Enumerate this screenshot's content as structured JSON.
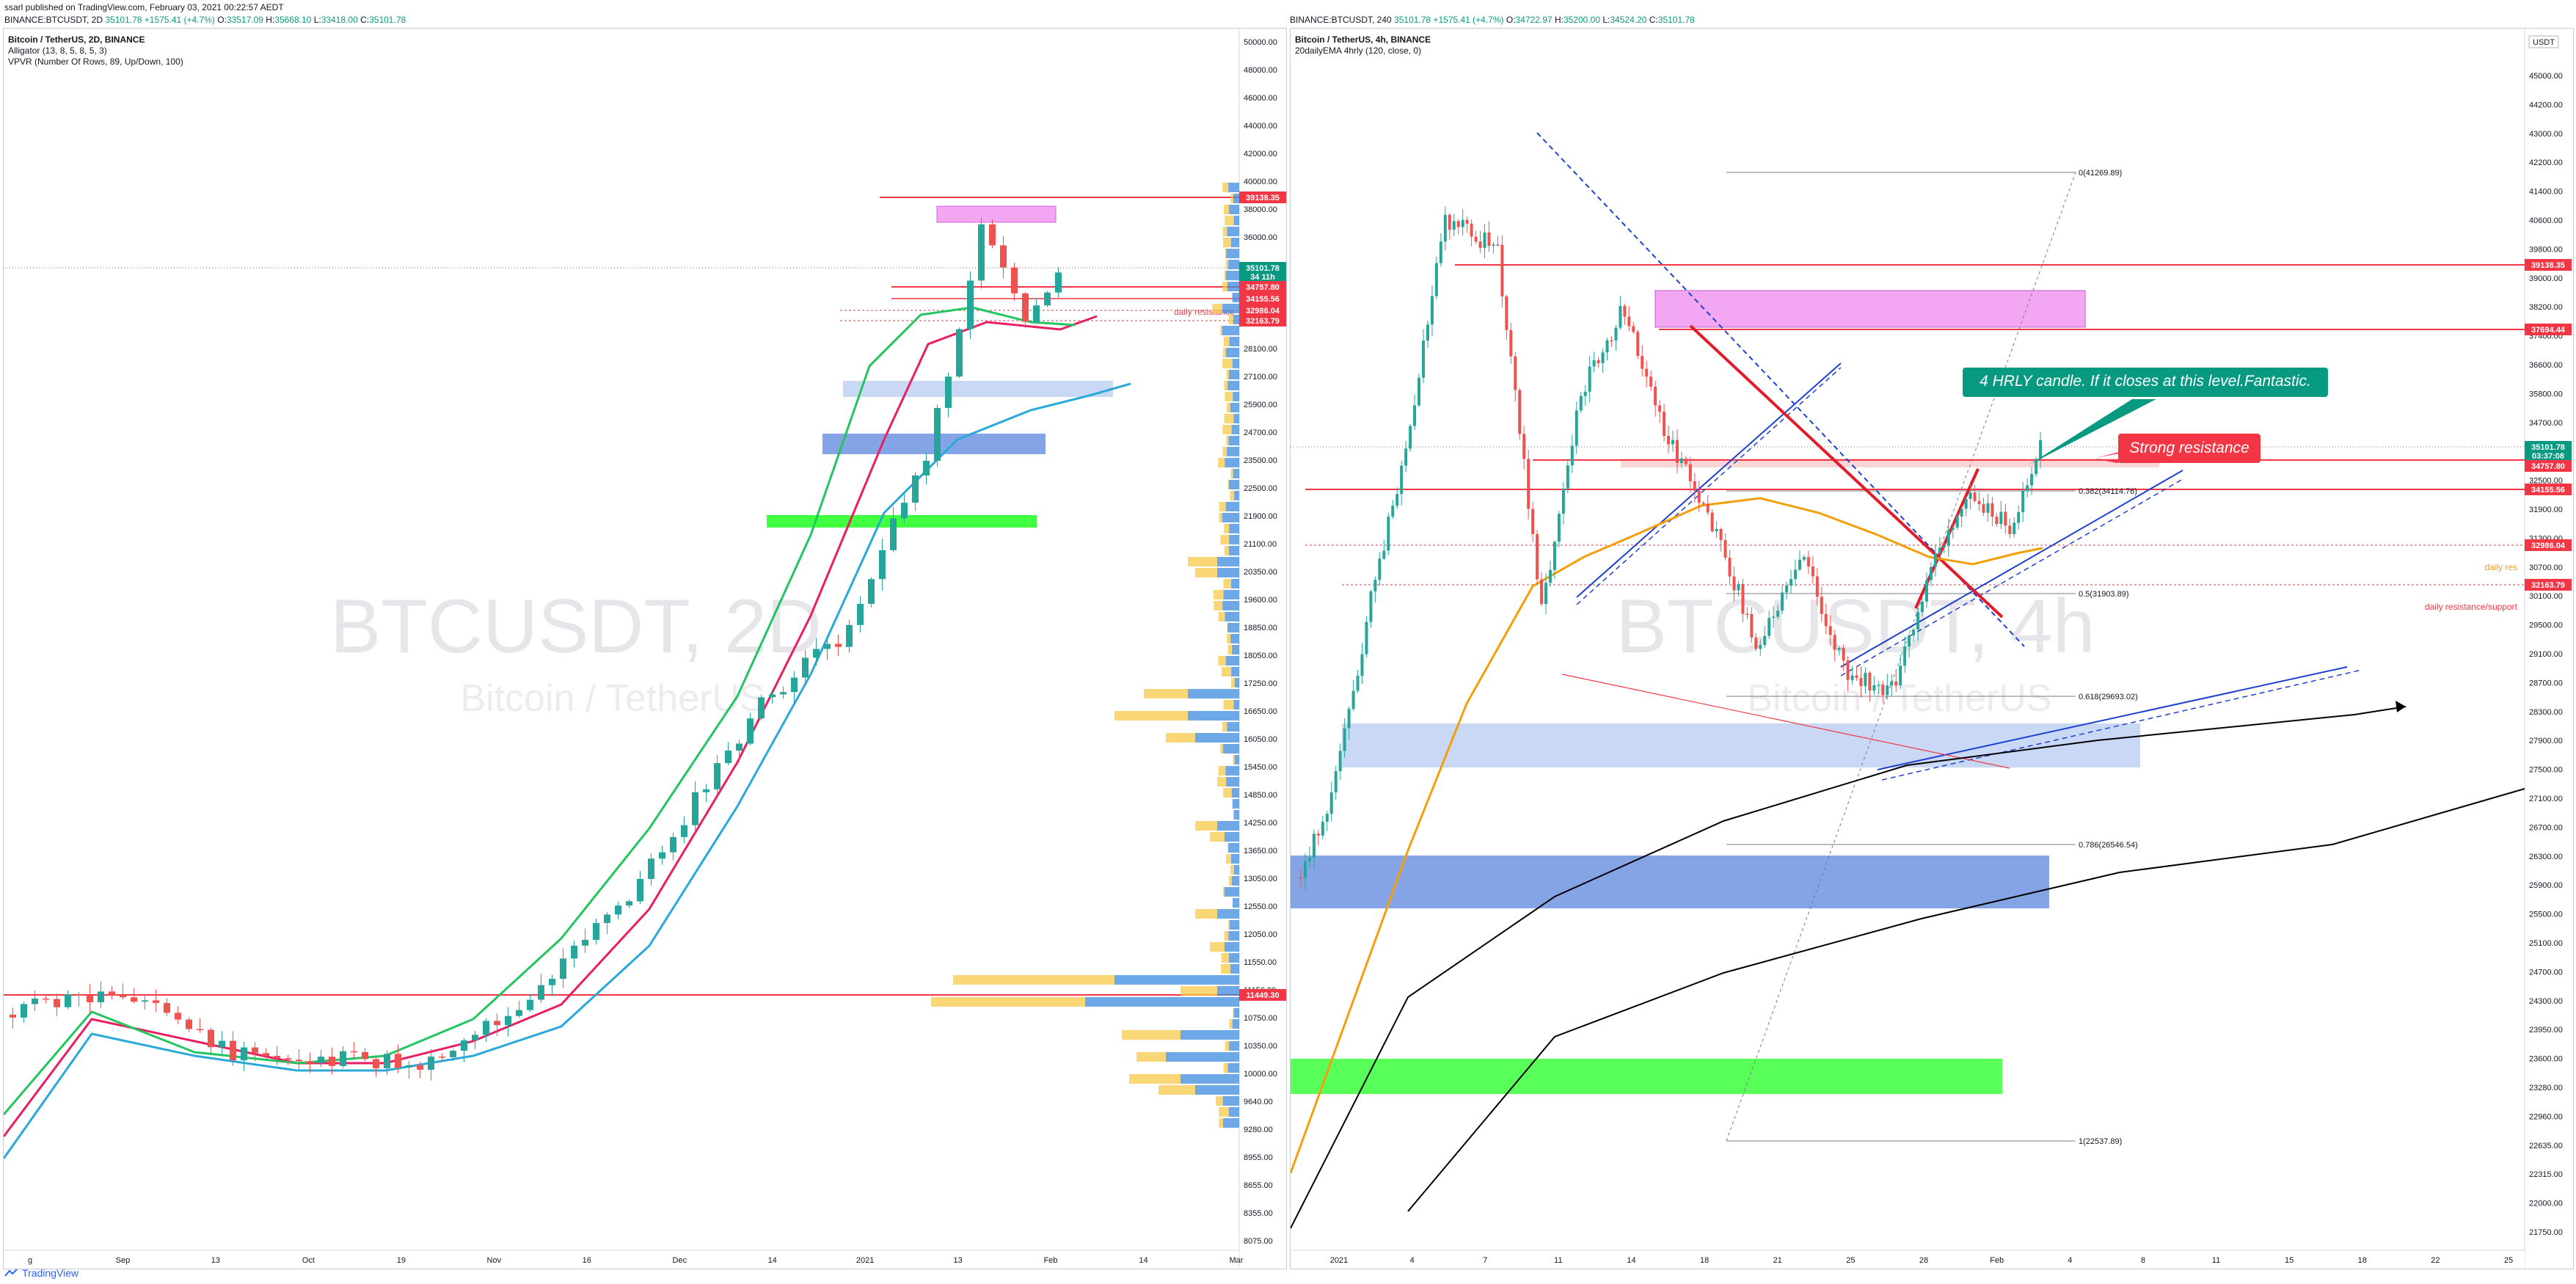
{
  "header": {
    "published_line": "ssarl published on TradingView.com, February 03, 2021 00:22:57 AEDT",
    "ohlc_line": {
      "symbol": "BINANCE:BTCUSDT, 2D",
      "o_label": "O:",
      "o": "33517.09",
      "h_label": "H:",
      "h": "35668.10",
      "l_label": "L:",
      "l": "33418.00",
      "c_label": "C:",
      "c": "35101.78",
      "last": "35101.78",
      "change": "+1575.41 (+4.7%)"
    },
    "ohlc_line_right": {
      "symbol": "BINANCE:BTCUSDT, 240",
      "last": "35101.78",
      "change": "+1575.41 (+4.7%)",
      "o_label": "O:",
      "o": "34722.97",
      "h_label": "H:",
      "h": "35200.00",
      "l_label": "L:",
      "l": "34524.20",
      "c_label": "C:",
      "c": "35101.78"
    }
  },
  "left_panel": {
    "title": "Bitcoin / TetherUS, 2D, BINANCE",
    "indicators": [
      "Alligator (13, 8, 5, 8, 5, 3)",
      "VPVR (Number Of Rows, 89, Up/Down, 100)"
    ],
    "watermark_main": "BTCUSDT, 2D",
    "watermark_sub": "Bitcoin / TetherUS",
    "label_daily_resistance": "daily resistance"
  },
  "right_panel": {
    "title": "Bitcoin / TetherUS, 4h, BINANCE",
    "indicators": [
      "20dailyEMA 4hrly (120, close, 0)"
    ],
    "watermark_main": "BTCUSDT, 4h",
    "watermark_sub": "Bitcoin / TetherUS",
    "usdt_badge": "USDT",
    "callout_1": "4 HRLY candle. If it closes at this level.Fantastic.",
    "callout_2": "Strong resistance",
    "label_daily_res": "daily res",
    "label_daily_res_support": "daily resistance/support",
    "fib_labels": [
      "0(41269.89)",
      "0.382(34114.76)",
      "0.5(31903.89)",
      "0.618(29693.02)",
      "0.786(26546.54)",
      "1(22537.89)"
    ]
  },
  "chart_data": [
    {
      "type": "candlestick",
      "title": "Bitcoin / TetherUS, 2D, BINANCE",
      "y_ticks": [
        "50000.00",
        "48000.00",
        "46000.00",
        "44000.00",
        "42000.00",
        "40000.00",
        "38000.00",
        "36000.00",
        "33000.00",
        "31000.00",
        "29500.00",
        "28100.00",
        "27100.00",
        "25900.00",
        "24700.00",
        "23500.00",
        "22500.00",
        "21900.00",
        "21100.00",
        "20350.00",
        "19600.00",
        "18850.00",
        "18050.00",
        "17250.00",
        "16650.00",
        "16050.00",
        "15450.00",
        "14850.00",
        "14250.00",
        "13650.00",
        "13050.00",
        "12550.00",
        "12050.00",
        "11550.00",
        "11150.00",
        "10750.00",
        "10350.00",
        "10000.00",
        "9640.00",
        "9280.00",
        "8955.00",
        "8655.00",
        "8355.00",
        "8075.00"
      ],
      "price_badges": [
        {
          "text": "39138.35",
          "color": "#f23645"
        },
        {
          "text": "35101.78",
          "color": "#089981"
        },
        {
          "text": "34 11h",
          "color": "#089981"
        },
        {
          "text": "34757.80",
          "color": "#f23645"
        },
        {
          "text": "34155.56",
          "color": "#f23645"
        },
        {
          "text": "32986.04",
          "color": "#f23645"
        },
        {
          "text": "32163.79",
          "color": "#f23645"
        },
        {
          "text": "11449.30",
          "color": "#f23645"
        }
      ],
      "x_ticks": [
        "g",
        "Sep",
        "13",
        "Oct",
        "19",
        "Nov",
        "16",
        "Dec",
        "14",
        "2021",
        "13",
        "Feb",
        "14",
        "Mar"
      ],
      "last_price": 35101.78,
      "volume_profile": true
    },
    {
      "type": "candlestick",
      "title": "Bitcoin / TetherUS, 4h, BINANCE",
      "y_ticks": [
        "45000.00",
        "44200.00",
        "43000.00",
        "42200.00",
        "41400.00",
        "40600.00",
        "39800.00",
        "39000.00",
        "38200.00",
        "37400.00",
        "36600.00",
        "35800.00",
        "34700.00",
        "33500.00",
        "32500.00",
        "31900.00",
        "31300.00",
        "30700.00",
        "30100.00",
        "29500.00",
        "29100.00",
        "28700.00",
        "28300.00",
        "27900.00",
        "27500.00",
        "27100.00",
        "26700.00",
        "26300.00",
        "25900.00",
        "25500.00",
        "25100.00",
        "24700.00",
        "24300.00",
        "23950.00",
        "23600.00",
        "23280.00",
        "22960.00",
        "22635.00",
        "22315.00",
        "22000.00",
        "21750.00"
      ],
      "price_badges": [
        {
          "text": "39138.35",
          "color": "#f23645"
        },
        {
          "text": "37694.44",
          "color": "#f23645"
        },
        {
          "text": "35101.78",
          "color": "#089981"
        },
        {
          "text": "03:37:08",
          "color": "#089981"
        },
        {
          "text": "34757.80",
          "color": "#f23645"
        },
        {
          "text": "34155.56",
          "color": "#f23645"
        },
        {
          "text": "32986.04",
          "color": "#f23645"
        },
        {
          "text": "32163.79",
          "color": "#f23645"
        }
      ],
      "x_ticks": [
        "2021",
        "4",
        "7",
        "11",
        "14",
        "18",
        "21",
        "25",
        "28",
        "Feb",
        "4",
        "8",
        "11",
        "15",
        "18",
        "22",
        "25"
      ],
      "fib_levels": [
        {
          "level": 0,
          "price": 41269.89
        },
        {
          "level": 0.382,
          "price": 34114.76
        },
        {
          "level": 0.5,
          "price": 31903.89
        },
        {
          "level": 0.618,
          "price": 29693.02
        },
        {
          "level": 0.786,
          "price": 26546.54
        },
        {
          "level": 1,
          "price": 22537.89
        }
      ],
      "last_price": 35101.78
    }
  ],
  "footer": {
    "brand": "TradingView"
  },
  "colors": {
    "up": "#26a69a",
    "down": "#ef5350",
    "badge_red": "#f23645",
    "badge_green": "#089981"
  }
}
